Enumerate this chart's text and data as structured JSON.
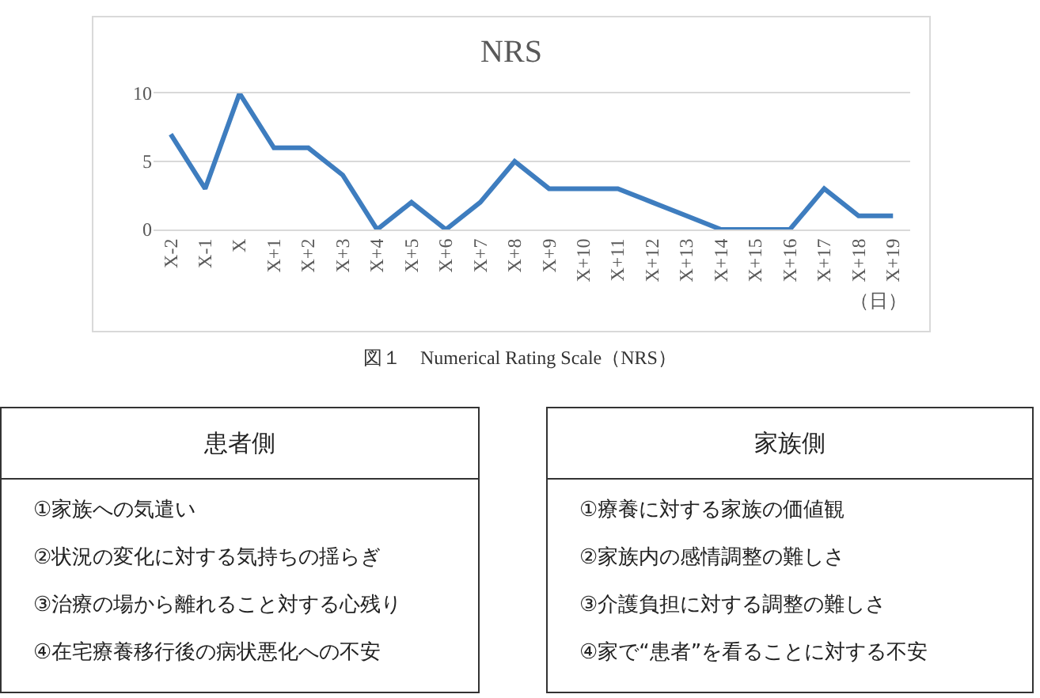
{
  "chart_data": [
    {
      "type": "line",
      "title": "NRS",
      "xlabel": "（日）",
      "categories": [
        "X-2",
        "X-1",
        "X",
        "X+1",
        "X+2",
        "X+3",
        "X+4",
        "X+5",
        "X+6",
        "X+7",
        "X+8",
        "X+9",
        "X+10",
        "X+11",
        "X+12",
        "X+13",
        "X+14",
        "X+15",
        "X+16",
        "X+17",
        "X+18",
        "X+19"
      ],
      "series": [
        {
          "color": "#3e7dbf",
          "values": [
            7,
            3,
            10,
            6,
            6,
            4,
            0,
            2,
            0,
            2,
            5,
            3,
            3,
            3,
            2,
            1,
            0,
            0,
            0,
            3,
            1,
            1
          ]
        }
      ],
      "ylim": [
        0,
        10
      ],
      "yticks": [
        0,
        5,
        10
      ],
      "grid": "y",
      "annotations": [
        "図１　Numerical Rating Scale（NRS）"
      ]
    },
    {
      "type": "other",
      "title": "患者側",
      "annotations": [
        "①家族への気遣い",
        "②状況の変化に対する気持ちの揺らぎ",
        "③治療の場から離れること対する心残り",
        "④在宅療養移行後の病状悪化への不安"
      ]
    },
    {
      "type": "other",
      "title": "家族側",
      "annotations": [
        "①療養に対する家族の価値観",
        "②家族内の感情調整の難しさ",
        "③介護負担に対する調整の難しさ",
        "④家で“患者”を看ることに対する不安"
      ]
    }
  ]
}
